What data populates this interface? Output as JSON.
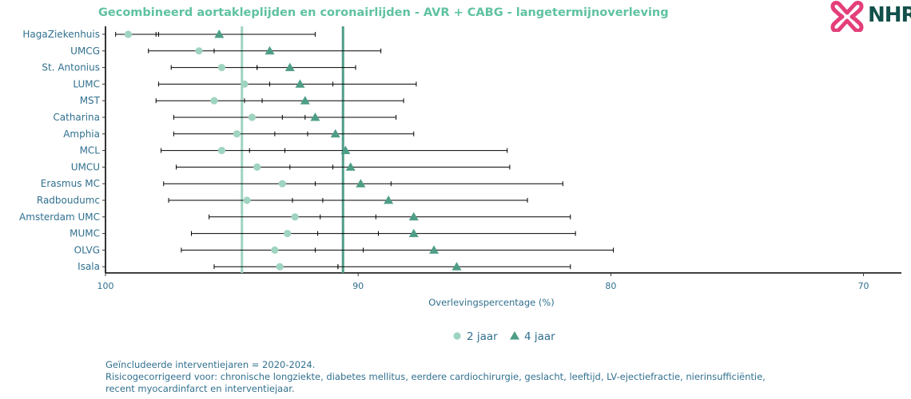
{
  "chart_data": {
    "type": "scatter",
    "title": "Gecombineerd aortakleplijden en coronairlijden - AVR + CABG - langetermijnoverleving",
    "xlabel": "Overlevingspercentage (%)",
    "xlim": [
      100,
      68.5
    ],
    "x_reversed": true,
    "xticks": [
      100,
      90,
      80,
      70
    ],
    "grid": false,
    "legend_position": "bottom",
    "categories": [
      "HagaZiekenhuis",
      "UMCG",
      "St. Antonius",
      "LUMC",
      "MST",
      "Catharina",
      "Amphia",
      "MCL",
      "UMCU",
      "Erasmus MC",
      "Radboudumc",
      "Amsterdam UMC",
      "MUMC",
      "OLVG",
      "Isala"
    ],
    "reference_lines": [
      {
        "series": "2 jaar",
        "value": 94.6,
        "color": "#9fd4c0"
      },
      {
        "series": "4 jaar",
        "value": 90.6,
        "color": "#4e9e87"
      }
    ],
    "series": [
      {
        "name": "2 jaar",
        "marker": "circle",
        "color": "#9fd4c0",
        "values": [
          99.1,
          96.3,
          95.4,
          94.5,
          95.7,
          94.2,
          94.8,
          95.4,
          94.0,
          93.0,
          94.4,
          92.5,
          92.8,
          93.3,
          93.1
        ],
        "lower": [
          98.0,
          95.7,
          94.0,
          93.5,
          94.5,
          93.0,
          93.3,
          94.3,
          92.7,
          91.7,
          92.6,
          91.5,
          91.6,
          91.7,
          90.8
        ],
        "upper": [
          99.6,
          98.3,
          97.4,
          97.9,
          98.0,
          97.3,
          97.3,
          97.8,
          97.2,
          97.7,
          97.5,
          95.9,
          96.6,
          97.0,
          95.7
        ]
      },
      {
        "name": "4 jaar",
        "marker": "triangle",
        "color": "#4e9e87",
        "values": [
          95.5,
          93.5,
          92.7,
          92.3,
          92.1,
          91.7,
          90.9,
          90.5,
          90.3,
          89.9,
          88.8,
          87.8,
          87.8,
          87.0,
          86.1
        ],
        "lower": [
          91.7,
          89.1,
          90.1,
          87.7,
          88.2,
          88.5,
          87.8,
          84.1,
          84.0,
          81.9,
          83.3,
          81.6,
          81.4,
          79.9,
          81.6
        ],
        "upper": [
          97.9,
          96.3,
          94.0,
          91.0,
          93.8,
          92.1,
          92.0,
          92.9,
          91.0,
          88.7,
          91.4,
          89.3,
          89.2,
          89.8,
          90.8
        ]
      }
    ]
  },
  "logo": {
    "text": "NHR",
    "colors": {
      "mark": "#e43f7a",
      "text": "#12504a"
    }
  },
  "footnote": {
    "line1": "Geïncludeerde interventiejaren = 2020-2024.",
    "line2": "Risicogecorrigeerd voor: chronische longziekte, diabetes mellitus, eerdere cardiochirurgie, geslacht, leeftijd, LV-ejectiefractie, nierinsufficiëntie,",
    "line3": "recent myocardinfarct en interventiejaar."
  }
}
